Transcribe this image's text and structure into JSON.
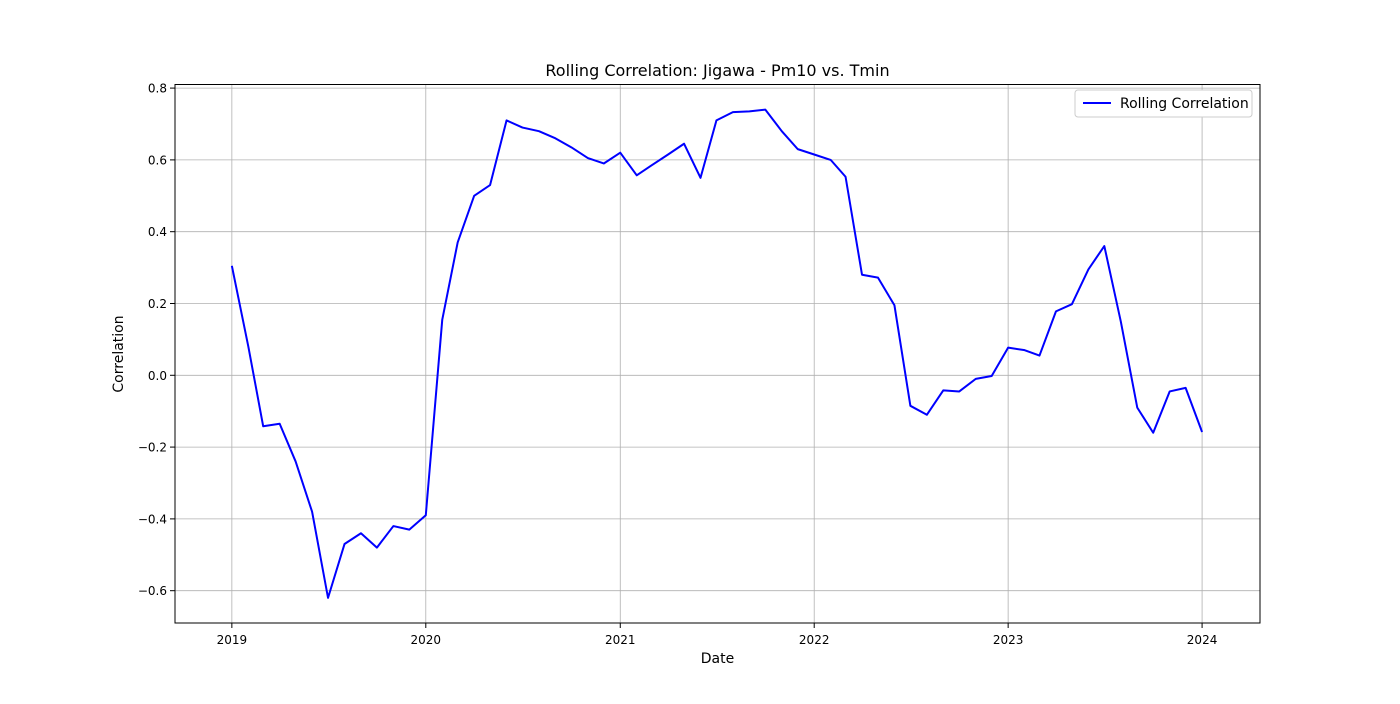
{
  "chart_data": {
    "type": "line",
    "title": "Rolling Correlation: Jigawa - Pm10 vs. Tmin",
    "xlabel": "Date",
    "ylabel": "Correlation",
    "x_ticks": [
      "2019",
      "2020",
      "2021",
      "2022",
      "2023",
      "2024"
    ],
    "y_ticks": [
      "−0.6",
      "−0.4",
      "−0.2",
      "0.0",
      "0.2",
      "0.4",
      "0.6",
      "0.8"
    ],
    "y_tick_values": [
      -0.6,
      -0.4,
      -0.2,
      0.0,
      0.2,
      0.4,
      0.6,
      0.8
    ],
    "xlim": [
      "2018-09-16",
      "2024-04-19"
    ],
    "ylim": [
      -0.69,
      0.81
    ],
    "grid": true,
    "legend_position": "top-right",
    "series": [
      {
        "name": "Rolling Correlation",
        "color": "#0000ff",
        "x": [
          "2019-01",
          "2019-02",
          "2019-03",
          "2019-04",
          "2019-05",
          "2019-06",
          "2019-07",
          "2019-08",
          "2019-09",
          "2019-10",
          "2019-11",
          "2019-12",
          "2020-01",
          "2020-02",
          "2020-03",
          "2020-04",
          "2020-05",
          "2020-06",
          "2020-07",
          "2020-08",
          "2020-09",
          "2020-10",
          "2020-11",
          "2020-12",
          "2021-01",
          "2021-02",
          "2021-03",
          "2021-04",
          "2021-05",
          "2021-06",
          "2021-07",
          "2021-08",
          "2021-09",
          "2021-10",
          "2021-11",
          "2021-12",
          "2022-01",
          "2022-02",
          "2022-03",
          "2022-04",
          "2022-05",
          "2022-06",
          "2022-07",
          "2022-08",
          "2022-09",
          "2022-10",
          "2022-11",
          "2022-12",
          "2023-01",
          "2023-02",
          "2023-03",
          "2023-04",
          "2023-05",
          "2023-06",
          "2023-07",
          "2023-08",
          "2023-09",
          "2023-10",
          "2023-11",
          "2023-12",
          "2024-01"
        ],
        "y": [
          0.305,
          0.08,
          -0.142,
          -0.135,
          -0.24,
          -0.38,
          -0.62,
          -0.47,
          -0.44,
          -0.48,
          -0.42,
          -0.43,
          -0.39,
          0.155,
          0.37,
          0.5,
          0.53,
          0.71,
          0.69,
          0.68,
          0.66,
          0.635,
          0.605,
          0.59,
          0.62,
          0.557,
          0.585,
          0.615,
          0.645,
          0.55,
          0.71,
          0.733,
          0.735,
          0.74,
          0.68,
          0.63,
          0.615,
          0.6,
          0.553,
          0.28,
          0.272,
          0.195,
          -0.085,
          -0.11,
          -0.042,
          -0.045,
          -0.01,
          -0.002,
          0.077,
          0.07,
          0.055,
          0.178,
          0.198,
          0.295,
          0.36,
          0.15,
          -0.09,
          -0.16,
          -0.045,
          -0.035,
          -0.158
        ]
      }
    ]
  }
}
